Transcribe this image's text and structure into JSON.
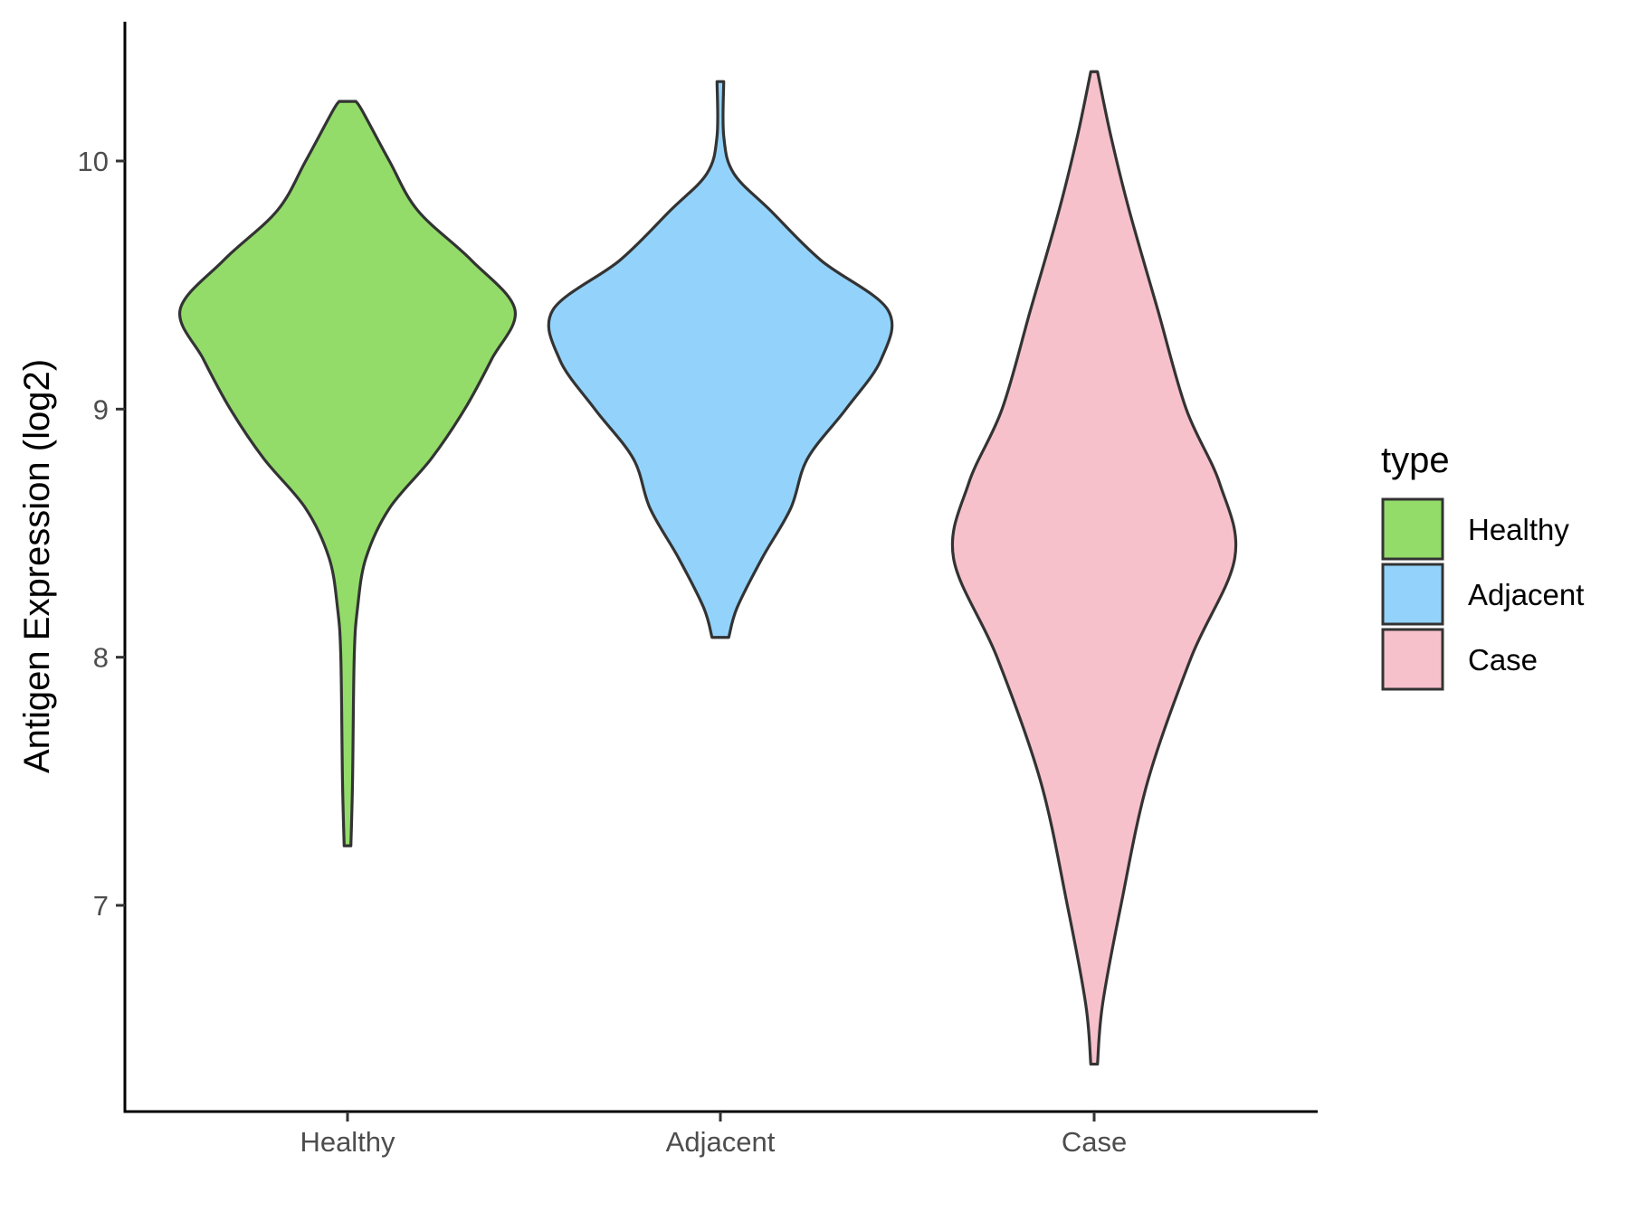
{
  "chart_data": {
    "type": "violin",
    "title": "",
    "xlabel": "",
    "ylabel": "Antigen Expression (log2)",
    "ylim": [
      6.2,
      10.6
    ],
    "yticks": [
      7,
      8,
      9,
      10
    ],
    "categories": [
      "Healthy",
      "Adjacent",
      "Case"
    ],
    "grid": false,
    "legend": {
      "title": "type",
      "placement": "right",
      "entries": [
        "Healthy",
        "Adjacent",
        "Case"
      ]
    },
    "series": [
      {
        "category": "Healthy",
        "color": "#93dc6a",
        "min": 7.24,
        "max": 10.24,
        "density": [
          [
            7.24,
            0.02
          ],
          [
            7.5,
            0.03
          ],
          [
            8.0,
            0.04
          ],
          [
            8.2,
            0.06
          ],
          [
            8.4,
            0.11
          ],
          [
            8.6,
            0.25
          ],
          [
            8.8,
            0.5
          ],
          [
            9.0,
            0.7
          ],
          [
            9.2,
            0.86
          ],
          [
            9.4,
            1.0
          ],
          [
            9.6,
            0.74
          ],
          [
            9.8,
            0.42
          ],
          [
            10.0,
            0.25
          ],
          [
            10.2,
            0.09
          ],
          [
            10.24,
            0.05
          ]
        ]
      },
      {
        "category": "Adjacent",
        "color": "#93d3fb",
        "min": 8.08,
        "max": 10.32,
        "density": [
          [
            8.08,
            0.05
          ],
          [
            8.2,
            0.1
          ],
          [
            8.4,
            0.25
          ],
          [
            8.6,
            0.42
          ],
          [
            8.8,
            0.52
          ],
          [
            9.0,
            0.75
          ],
          [
            9.2,
            0.96
          ],
          [
            9.4,
            1.0
          ],
          [
            9.6,
            0.6
          ],
          [
            9.8,
            0.3
          ],
          [
            9.95,
            0.08
          ],
          [
            10.1,
            0.02
          ],
          [
            10.32,
            0.02
          ]
        ]
      },
      {
        "category": "Case",
        "color": "#f7c1cc",
        "min": 6.36,
        "max": 10.36,
        "density": [
          [
            6.36,
            0.02
          ],
          [
            6.6,
            0.05
          ],
          [
            7.0,
            0.16
          ],
          [
            7.5,
            0.32
          ],
          [
            8.0,
            0.58
          ],
          [
            8.4,
            0.84
          ],
          [
            8.7,
            0.75
          ],
          [
            9.0,
            0.55
          ],
          [
            9.4,
            0.38
          ],
          [
            9.8,
            0.21
          ],
          [
            10.1,
            0.1
          ],
          [
            10.36,
            0.02
          ]
        ]
      }
    ]
  }
}
